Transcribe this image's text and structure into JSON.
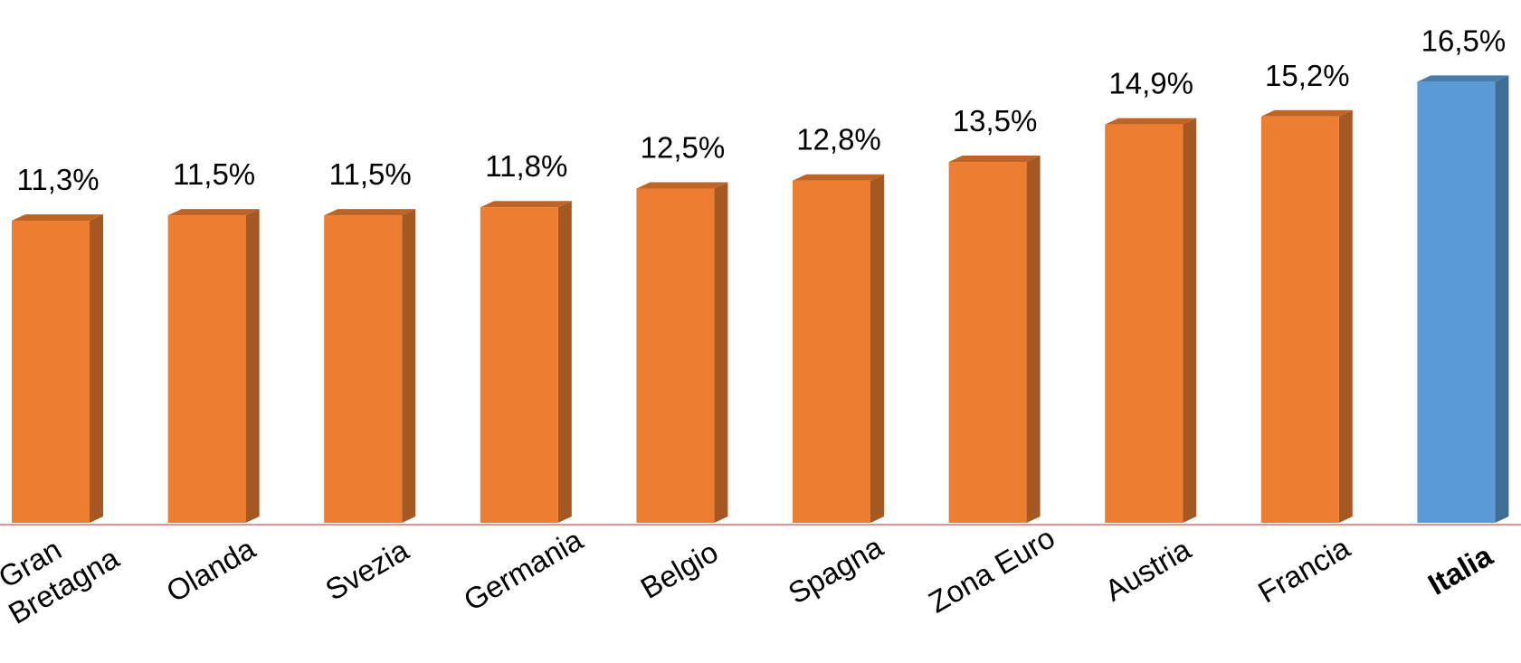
{
  "chart_data": {
    "type": "bar3d",
    "categories": [
      "Gran\nBretagna",
      "Olanda",
      "Svezia",
      "Germania",
      "Belgio",
      "Spagna",
      "Zona Euro",
      "Austria",
      "Francia",
      "Italia"
    ],
    "values": [
      11.3,
      11.5,
      11.5,
      11.8,
      12.5,
      12.8,
      13.5,
      14.9,
      15.2,
      16.5
    ],
    "value_labels": [
      "11,3%",
      "11,5%",
      "11,5%",
      "11,8%",
      "12,5%",
      "12,8%",
      "13,5%",
      "14,9%",
      "15,2%",
      "16,5%"
    ],
    "colors": [
      "#ed7d31",
      "#ed7d31",
      "#ed7d31",
      "#ed7d31",
      "#ed7d31",
      "#ed7d31",
      "#ed7d31",
      "#ed7d31",
      "#ed7d31",
      "#5b9bd5"
    ],
    "bold": [
      false,
      false,
      false,
      false,
      false,
      false,
      false,
      false,
      false,
      true
    ],
    "ylim": [
      0,
      18
    ]
  }
}
